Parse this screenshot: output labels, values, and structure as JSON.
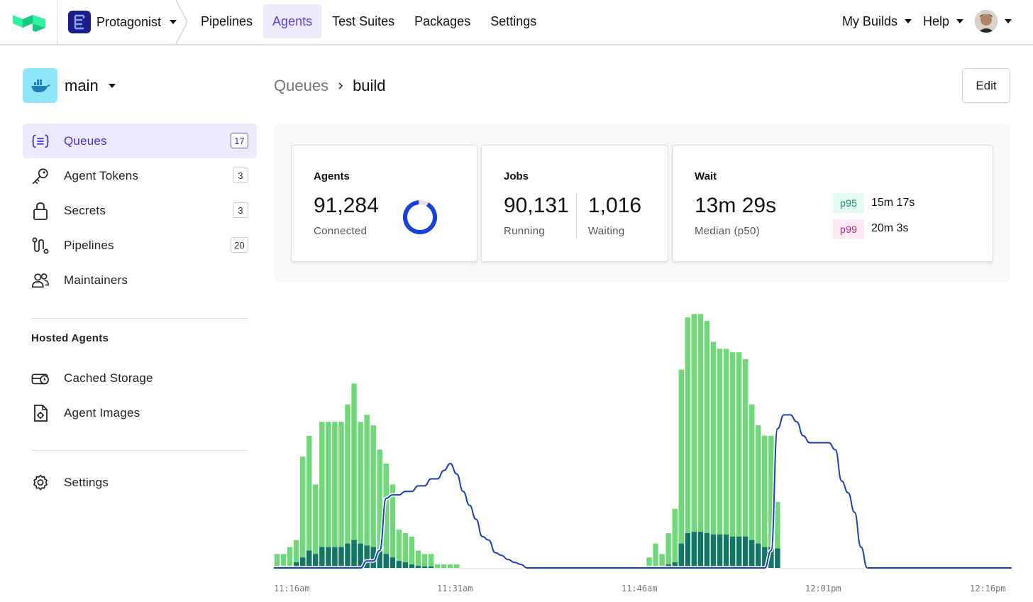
{
  "nav": {
    "org_name": "Protagonist",
    "tabs": [
      {
        "label": "Pipelines",
        "active": false
      },
      {
        "label": "Agents",
        "active": true
      },
      {
        "label": "Test Suites",
        "active": false
      },
      {
        "label": "Packages",
        "active": false
      },
      {
        "label": "Settings",
        "active": false
      }
    ],
    "my_builds": "My Builds",
    "help": "Help"
  },
  "cluster": {
    "name": "main"
  },
  "sidebar": {
    "items": [
      {
        "label": "Queues",
        "count": "17",
        "icon": "queues-icon",
        "active": true
      },
      {
        "label": "Agent Tokens",
        "count": "3",
        "icon": "key-icon",
        "active": false
      },
      {
        "label": "Secrets",
        "count": "3",
        "icon": "lock-icon",
        "active": false
      },
      {
        "label": "Pipelines",
        "count": "20",
        "icon": "pipeline-icon",
        "active": false
      },
      {
        "label": "Maintainers",
        "count": "",
        "icon": "users-icon",
        "active": false
      }
    ],
    "hosted_heading": "Hosted Agents",
    "hosted_items": [
      {
        "label": "Cached Storage",
        "icon": "storage-icon"
      },
      {
        "label": "Agent Images",
        "icon": "image-file-icon"
      }
    ],
    "settings_label": "Settings"
  },
  "breadcrumb": {
    "parent": "Queues",
    "current": "build"
  },
  "edit_label": "Edit",
  "stats": {
    "agents": {
      "title": "Agents",
      "value": "91,284",
      "label": "Connected",
      "connected_fraction": 0.97
    },
    "jobs": {
      "title": "Jobs",
      "running": "90,131",
      "running_label": "Running",
      "waiting": "1,016",
      "waiting_label": "Waiting"
    },
    "wait": {
      "title": "Wait",
      "median": "13m 29s",
      "median_label": "Median (p50)",
      "p95_label": "p95",
      "p95": "15m 17s",
      "p99_label": "p99",
      "p99": "20m 3s"
    }
  },
  "colors": {
    "accent": "#5a3fd8",
    "bar_light": "#6fd97a",
    "bar_dark": "#137565",
    "line": "#1a3fc2",
    "ring": "#1640e0"
  },
  "chart_data": {
    "type": "bar",
    "x_ticks": [
      "11:16am",
      "11:31am",
      "11:46am",
      "12:01pm",
      "12:16pm"
    ],
    "ylim": [
      0,
      370
    ],
    "series": [
      {
        "name": "total",
        "values": [
          20,
          20,
          30,
          40,
          160,
          190,
          120,
          210,
          210,
          210,
          210,
          235,
          265,
          210,
          220,
          205,
          170,
          150,
          120,
          55,
          50,
          45,
          25,
          20,
          20,
          5,
          5,
          5,
          5,
          0,
          0,
          0,
          0,
          0,
          0,
          0,
          0,
          0,
          0,
          0,
          0,
          0,
          0,
          0,
          0,
          0,
          0,
          0,
          0,
          0,
          0,
          0,
          0,
          0,
          0,
          0,
          0,
          0,
          15,
          35,
          20,
          50,
          85,
          285,
          360,
          365,
          365,
          355,
          325,
          315,
          315,
          310,
          310,
          300,
          235,
          205,
          190,
          190,
          95,
          0,
          0,
          0,
          0,
          0,
          0,
          0,
          0,
          0,
          0,
          0,
          0,
          0,
          0,
          0,
          0,
          0,
          0,
          0,
          0,
          0,
          0,
          0,
          0,
          0,
          0,
          0,
          0,
          0,
          0,
          0,
          0,
          0,
          0,
          0,
          0
        ]
      },
      {
        "name": "running",
        "values": [
          0,
          0,
          0,
          8,
          15,
          25,
          20,
          30,
          30,
          30,
          30,
          35,
          40,
          35,
          32,
          30,
          25,
          20,
          15,
          10,
          8,
          5,
          3,
          2,
          2,
          0,
          0,
          0,
          0,
          0,
          0,
          0,
          0,
          0,
          0,
          0,
          0,
          0,
          0,
          0,
          0,
          0,
          0,
          0,
          0,
          0,
          0,
          0,
          0,
          0,
          0,
          0,
          0,
          0,
          0,
          0,
          0,
          0,
          0,
          0,
          0,
          5,
          8,
          35,
          50,
          52,
          52,
          50,
          48,
          48,
          48,
          45,
          45,
          45,
          40,
          35,
          30,
          30,
          28,
          0,
          0,
          0,
          0,
          0,
          0,
          0,
          0,
          0,
          0,
          0,
          0,
          0,
          0,
          0,
          0,
          0,
          0,
          0,
          0,
          0,
          0,
          0,
          0,
          0,
          0,
          0,
          0,
          0,
          0,
          0,
          0,
          0,
          0,
          0,
          0
        ]
      },
      {
        "name": "wait_time",
        "values": [
          0,
          0,
          0,
          0,
          0,
          0,
          0,
          0,
          0,
          0,
          0,
          0,
          0,
          0,
          10,
          10,
          25,
          100,
          105,
          105,
          110,
          110,
          118,
          118,
          128,
          128,
          140,
          150,
          135,
          110,
          90,
          70,
          45,
          40,
          22,
          18,
          12,
          8,
          5,
          0,
          0,
          0,
          0,
          0,
          0,
          0,
          0,
          0,
          0,
          0,
          0,
          0,
          0,
          0,
          0,
          0,
          0,
          0,
          0,
          0,
          0,
          0,
          0,
          0,
          0,
          0,
          0,
          0,
          0,
          0,
          0,
          0,
          0,
          0,
          0,
          0,
          0,
          25,
          200,
          220,
          220,
          210,
          190,
          180,
          180,
          180,
          180,
          170,
          125,
          108,
          80,
          30,
          0,
          0,
          0,
          0,
          0,
          0,
          0,
          0,
          0,
          0,
          0,
          0,
          0,
          0,
          0,
          0,
          0,
          0,
          0,
          0,
          0,
          0,
          0
        ]
      }
    ]
  }
}
